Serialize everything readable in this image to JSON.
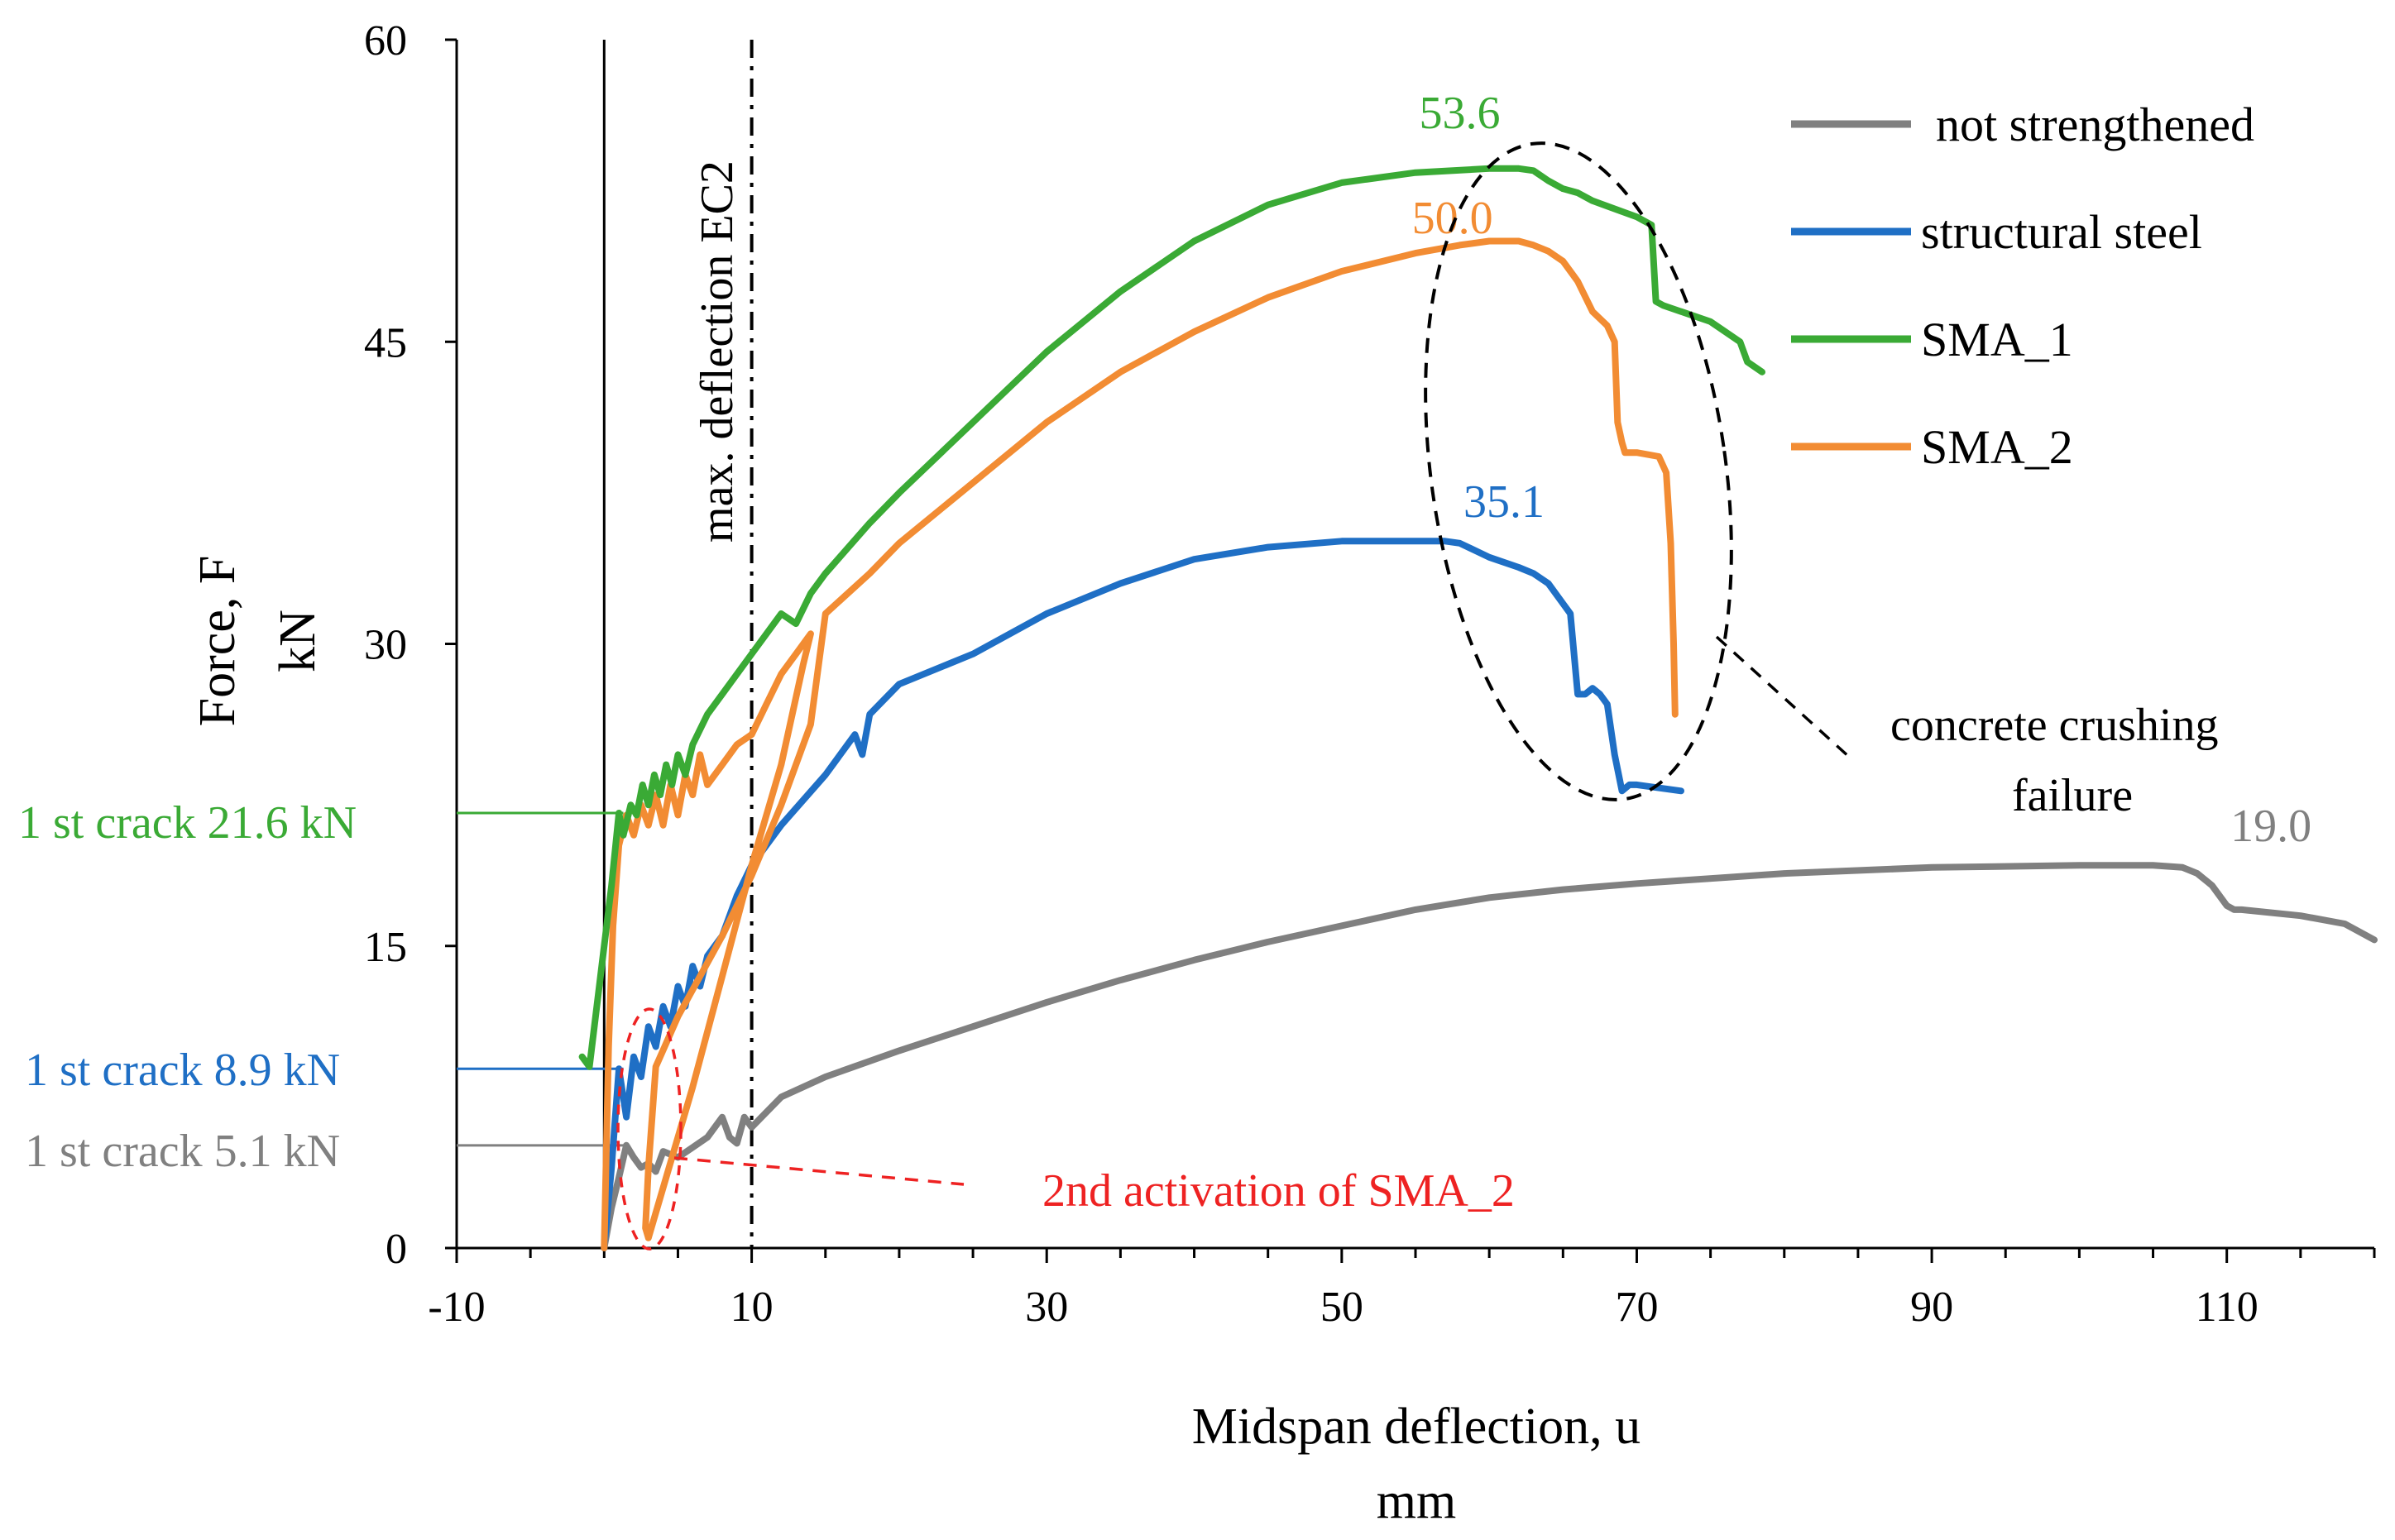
{
  "chart_data": {
    "type": "line",
    "title": "",
    "xlabel": "Midspan deflection, u",
    "xunit": "mm",
    "ylabel": "Force, F",
    "yunit": "kN",
    "xlim": [
      -10,
      120
    ],
    "ylim": [
      0,
      60
    ],
    "xticks": [
      -10,
      10,
      30,
      50,
      70,
      90,
      110
    ],
    "yticks": [
      0,
      15,
      30,
      45,
      60
    ],
    "grid": false,
    "legend_position": "top-right",
    "colors": {
      "not strengthened": "#808080",
      "structural steel": "#1f6fc5",
      "SMA_1": "#3aaa35",
      "SMA_2": "#f28c33",
      "annotation_red": "#ee2222"
    },
    "series": [
      {
        "name": "not strengthened",
        "color": "#808080",
        "x": [
          0,
          0.5,
          1,
          1.5,
          2,
          2.5,
          3,
          3.5,
          4,
          5,
          6,
          7,
          8,
          8.5,
          9,
          9.5,
          10,
          12,
          15,
          20,
          25,
          30,
          35,
          40,
          45,
          50,
          55,
          60,
          65,
          70,
          80,
          90,
          100,
          105,
          107,
          108,
          109,
          110,
          110.5,
          111,
          115,
          118,
          120
        ],
        "y": [
          0,
          2,
          3.5,
          5.1,
          4.5,
          4.0,
          4.2,
          3.8,
          4.8,
          4.5,
          5.0,
          5.5,
          6.5,
          5.5,
          5.2,
          6.5,
          6.0,
          7.5,
          8.5,
          9.8,
          11.0,
          12.2,
          13.3,
          14.3,
          15.2,
          16.0,
          16.8,
          17.4,
          17.8,
          18.1,
          18.6,
          18.9,
          19.0,
          19.0,
          18.9,
          18.6,
          18.0,
          17.0,
          16.8,
          16.8,
          16.5,
          16.1,
          15.3
        ]
      },
      {
        "name": "structural steel",
        "color": "#1f6fc5",
        "x": [
          0,
          0.5,
          1,
          1.5,
          2,
          2.5,
          3,
          3.5,
          4,
          4.5,
          5,
          5.5,
          6,
          6.5,
          7,
          7.5,
          8,
          9,
          10,
          12,
          15,
          17,
          17.5,
          18,
          20,
          25,
          30,
          35,
          40,
          45,
          50,
          55,
          57,
          58,
          60,
          62,
          63,
          64,
          65,
          65.5,
          66,
          66.5,
          67,
          67.5,
          68,
          68.5,
          69,
          69.5,
          70,
          73
        ],
        "y": [
          0,
          4,
          8.9,
          6.5,
          9.5,
          8.5,
          11.0,
          10.0,
          12.0,
          11.0,
          13.0,
          12.0,
          14.0,
          13.0,
          14.5,
          15.0,
          15.5,
          17.5,
          19.0,
          21.0,
          23.5,
          25.5,
          24.5,
          26.5,
          28.0,
          29.5,
          31.5,
          33.0,
          34.2,
          34.8,
          35.1,
          35.1,
          35.1,
          35.0,
          34.3,
          33.8,
          33.5,
          33.0,
          32.0,
          31.5,
          27.5,
          27.5,
          27.8,
          27.5,
          27.0,
          24.5,
          22.7,
          23.0,
          23.0,
          22.7
        ]
      },
      {
        "name": "SMA_1",
        "color": "#3aaa35",
        "x": [
          -1.5,
          -1,
          0,
          0.5,
          1,
          1.3,
          1.8,
          2.2,
          2.6,
          3,
          3.4,
          3.8,
          4.2,
          4.6,
          5,
          5.5,
          6,
          7,
          8,
          10,
          12,
          13,
          14,
          15,
          18,
          20,
          25,
          30,
          35,
          40,
          45,
          50,
          55,
          60,
          62,
          63,
          64,
          65,
          66,
          67,
          70,
          71,
          71.3,
          71.8,
          73,
          75,
          76,
          77,
          77.5,
          78.5
        ],
        "y": [
          9.5,
          9.0,
          15.0,
          18.0,
          21.6,
          20.5,
          22.0,
          21.5,
          23.0,
          22.0,
          23.5,
          22.5,
          24.0,
          23.0,
          24.5,
          23.5,
          25.0,
          26.5,
          27.5,
          29.5,
          31.5,
          31.0,
          32.5,
          33.5,
          36.0,
          37.5,
          41.0,
          44.5,
          47.5,
          50.0,
          51.8,
          52.9,
          53.4,
          53.6,
          53.6,
          53.5,
          53.0,
          52.6,
          52.4,
          52.0,
          51.2,
          50.8,
          47.0,
          46.8,
          46.5,
          46.0,
          45.5,
          45.0,
          44.0,
          43.5
        ]
      },
      {
        "name": "SMA_2",
        "color": "#f28c33",
        "x": [
          0,
          0.3,
          0.6,
          1,
          1.5,
          2,
          2.5,
          3,
          3.5,
          4,
          4.5,
          5,
          5.5,
          6,
          6.5,
          7,
          8,
          9,
          10,
          11,
          12,
          13,
          14,
          13.5,
          12,
          10,
          8,
          6,
          4,
          3,
          2.8,
          3,
          3.5,
          5,
          8,
          10,
          12,
          14,
          15,
          18,
          20,
          25,
          30,
          35,
          40,
          45,
          50,
          55,
          58,
          60,
          61,
          62,
          63,
          64,
          65,
          66,
          67,
          68,
          68.5,
          68.7,
          69,
          69.2,
          70,
          71.5,
          72,
          72.3,
          72.5,
          72.6
        ],
        "y": [
          0,
          10,
          16,
          20,
          21.5,
          20.5,
          22.0,
          21.0,
          22.5,
          21.0,
          23.0,
          21.5,
          23.5,
          22.5,
          24.5,
          23.0,
          24.0,
          25.0,
          25.5,
          27.0,
          28.5,
          29.5,
          30.5,
          29.0,
          24.0,
          19.0,
          13.5,
          8.0,
          3.0,
          0.5,
          1.0,
          4.0,
          9.0,
          11.5,
          15.5,
          18.5,
          22.0,
          26.0,
          31.5,
          33.5,
          35.0,
          38.0,
          41.0,
          43.5,
          45.5,
          47.2,
          48.5,
          49.4,
          49.8,
          50.0,
          50.0,
          50.0,
          49.8,
          49.5,
          49.0,
          48.0,
          46.5,
          45.8,
          45.0,
          41.0,
          40.0,
          39.5,
          39.5,
          39.3,
          38.5,
          35.0,
          30.0,
          26.5
        ]
      }
    ],
    "legend": [
      "not strengthened",
      "structural steel",
      "SMA_1",
      "SMA_2"
    ],
    "vertical_lines": [
      {
        "x": 0,
        "style": "solid",
        "color": "#000000"
      },
      {
        "x": 10,
        "style": "dash-dot",
        "color": "#000000",
        "label": "max. deflection EC2"
      }
    ],
    "crack_lines": [
      {
        "label": "1 st crack 21.6 kN",
        "y": 21.6,
        "x_end": 1.3,
        "color": "#3aaa35"
      },
      {
        "label": "1 st crack 8.9 kN",
        "y": 8.9,
        "x_end": 1.3,
        "color": "#1f6fc5"
      },
      {
        "label": "1 st crack 5.1 kN",
        "y": 5.1,
        "x_end": 1.3,
        "color": "#808080"
      }
    ],
    "peak_labels": [
      {
        "text": "53.6",
        "x": 58,
        "y": 55.6,
        "color": "#3aaa35"
      },
      {
        "text": "50.0",
        "x": 57.5,
        "y": 50.4,
        "color": "#f28c33"
      },
      {
        "text": "35.1",
        "x": 61,
        "y": 36.3,
        "color": "#1f6fc5"
      },
      {
        "text": "19.0",
        "x": 113,
        "y": 20.2,
        "color": "#808080"
      }
    ],
    "annotations": [
      {
        "text": "concrete crushing",
        "color": "#000000"
      },
      {
        "text": "failure",
        "color": "#000000"
      },
      {
        "text": "2nd activation of SMA_2",
        "color": "#ee2222"
      }
    ]
  }
}
